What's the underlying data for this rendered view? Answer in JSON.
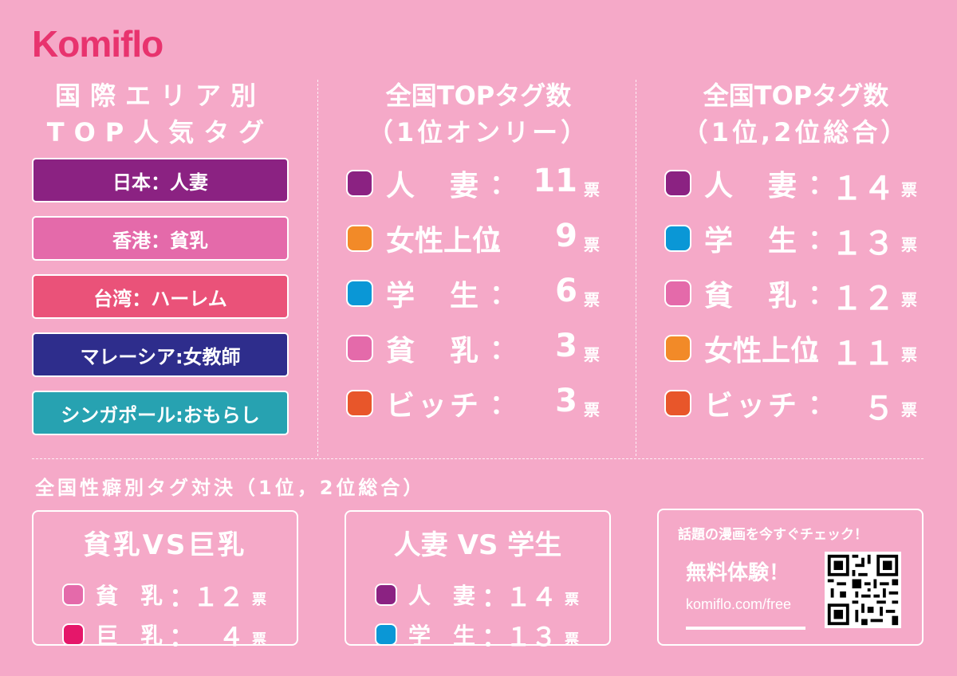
{
  "logo": "Komiflo",
  "regional": {
    "title_line1": "国際エリア別",
    "title_line2": "TOP人気タグ",
    "items": [
      {
        "label": "日本：人妻",
        "color": "#8b2282"
      },
      {
        "label": "香港：貧乳",
        "color": "#e46aaa"
      },
      {
        "label": "台湾：ハーレム",
        "color": "#ea5279"
      },
      {
        "label": "マレーシア:女教師",
        "color": "#2e2d8c"
      },
      {
        "label": "シンガポール:おもらし",
        "color": "#27a2b1"
      }
    ]
  },
  "panel_first": {
    "title_line1": "全国TOPタグ数",
    "title_line2": "（1位オンリー）"
  },
  "panel_total": {
    "title_line1": "全国TOPタグ数",
    "title_line2": "（1位,2位総合）"
  },
  "vote_unit": "票",
  "colon": "：",
  "chart_data": [
    {
      "type": "table",
      "title": "全国TOPタグ数（1位オンリー）",
      "categories": [
        "人妻",
        "女性上位",
        "学生",
        "貧乳",
        "ビッチ"
      ],
      "values": [
        11,
        9,
        6,
        3,
        3
      ],
      "labels": [
        "人　妻",
        "女性上位",
        "学　生",
        "貧　乳",
        "ビッチ"
      ],
      "display": [
        "11",
        "9",
        "6",
        "3",
        "3"
      ],
      "colors": [
        "#8b2282",
        "#f28a28",
        "#0a97d6",
        "#e46aaa",
        "#e8562a"
      ]
    },
    {
      "type": "table",
      "title": "全国TOPタグ数（1位,2位総合）",
      "categories": [
        "人妻",
        "学生",
        "貧乳",
        "女性上位",
        "ビッチ"
      ],
      "values": [
        14,
        13,
        12,
        11,
        5
      ],
      "labels": [
        "人　妻",
        "学　生",
        "貧　乳",
        "女性上位",
        "ビッチ"
      ],
      "display": [
        "１４",
        "１３",
        "１２",
        "１１",
        "５"
      ],
      "colors": [
        "#8b2282",
        "#0a97d6",
        "#e46aaa",
        "#f28a28",
        "#e8562a"
      ]
    },
    {
      "type": "table",
      "title": "貧乳VS巨乳",
      "categories": [
        "貧乳",
        "巨乳"
      ],
      "values": [
        12,
        4
      ],
      "labels": [
        "貧　乳",
        "巨　乳"
      ],
      "display": [
        "１２",
        "４"
      ],
      "colors": [
        "#e46aaa",
        "#e5176a"
      ]
    },
    {
      "type": "table",
      "title": "人妻 VS 学生",
      "categories": [
        "人妻",
        "学生"
      ],
      "values": [
        14,
        13
      ],
      "labels": [
        "人　妻",
        "学　生"
      ],
      "display": [
        "１４",
        "１３"
      ],
      "colors": [
        "#8b2282",
        "#0a97d6"
      ]
    }
  ],
  "fetish": {
    "title": "全国性癖別タグ対決（1位，2位総合）",
    "box1_title": "貧乳VS巨乳",
    "box2_title": "人妻 VS 学生"
  },
  "promo": {
    "line1": "話題の漫画を今すぐチェック！",
    "line2": "無料体験！",
    "url": "komiflo.com/free"
  }
}
